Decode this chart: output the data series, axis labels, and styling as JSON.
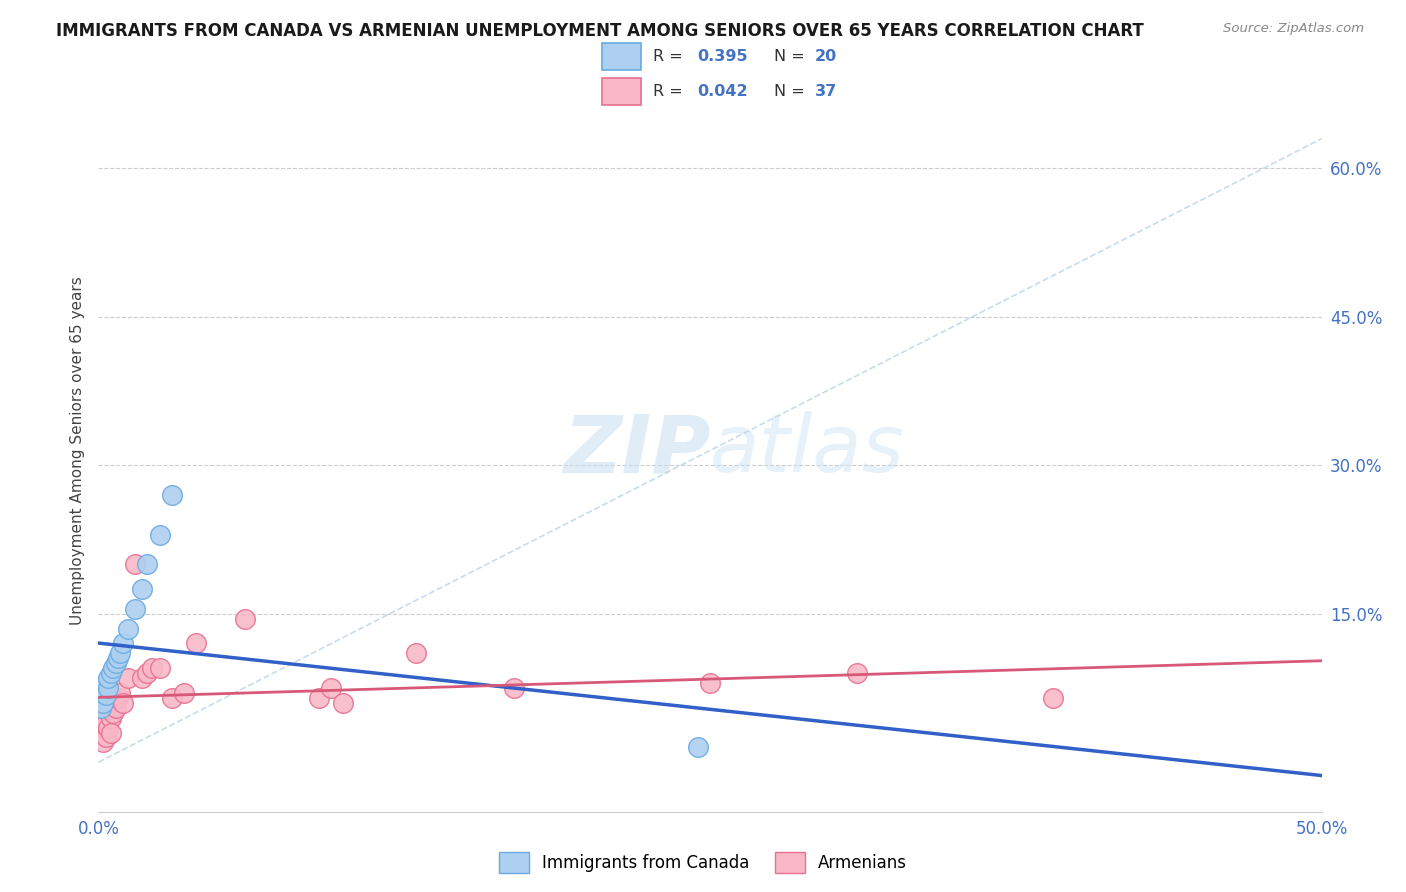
{
  "title": "IMMIGRANTS FROM CANADA VS ARMENIAN UNEMPLOYMENT AMONG SENIORS OVER 65 YEARS CORRELATION CHART",
  "source": "Source: ZipAtlas.com",
  "ylabel": "Unemployment Among Seniors over 65 years",
  "xlim": [
    0.0,
    0.5
  ],
  "ylim": [
    -0.05,
    0.68
  ],
  "canada_color": "#aed0f0",
  "canada_edge_color": "#6aaae0",
  "armenian_color": "#f8b8c8",
  "armenian_edge_color": "#e87090",
  "canada_line_color": "#3060c8",
  "armenian_line_color": "#d85878",
  "ref_line_color": "#b8d4e8",
  "R_canada": 0.395,
  "N_canada": 20,
  "R_armenian": 0.042,
  "N_armenian": 37,
  "canada_x": [
    0.001,
    0.002,
    0.002,
    0.003,
    0.003,
    0.004,
    0.004,
    0.005,
    0.006,
    0.007,
    0.008,
    0.009,
    0.01,
    0.012,
    0.015,
    0.018,
    0.02,
    0.025,
    0.03,
    0.245
  ],
  "canada_y": [
    0.055,
    0.06,
    0.07,
    0.068,
    0.08,
    0.075,
    0.085,
    0.09,
    0.095,
    0.1,
    0.105,
    0.11,
    0.12,
    0.135,
    0.155,
    0.175,
    0.2,
    0.23,
    0.27,
    0.015
  ],
  "armenian_x": [
    0.001,
    0.001,
    0.002,
    0.002,
    0.002,
    0.003,
    0.003,
    0.003,
    0.004,
    0.004,
    0.005,
    0.005,
    0.005,
    0.006,
    0.006,
    0.007,
    0.008,
    0.009,
    0.01,
    0.012,
    0.015,
    0.018,
    0.02,
    0.022,
    0.025,
    0.03,
    0.035,
    0.04,
    0.06,
    0.09,
    0.095,
    0.1,
    0.13,
    0.17,
    0.25,
    0.31,
    0.39
  ],
  "armenian_y": [
    0.03,
    0.045,
    0.035,
    0.055,
    0.02,
    0.04,
    0.055,
    0.025,
    0.035,
    0.06,
    0.045,
    0.055,
    0.03,
    0.05,
    0.065,
    0.055,
    0.065,
    0.07,
    0.06,
    0.085,
    0.2,
    0.085,
    0.09,
    0.095,
    0.095,
    0.065,
    0.07,
    0.12,
    0.145,
    0.065,
    0.075,
    0.06,
    0.11,
    0.075,
    0.08,
    0.09,
    0.065
  ],
  "watermark_text": "ZIPatlas",
  "legend_labels": [
    "Immigrants from Canada",
    "Armenians"
  ],
  "background_color": "#ffffff",
  "grid_color": "#cccccc",
  "right_yticks": [
    0.0,
    0.15,
    0.3,
    0.45,
    0.6
  ],
  "right_yticklabels": [
    "",
    "15.0%",
    "30.0%",
    "45.0%",
    "60.0%"
  ],
  "xticks": [
    0.0,
    0.1,
    0.2,
    0.3,
    0.4,
    0.5
  ],
  "xticklabels": [
    "0.0%",
    "",
    "",
    "",
    "",
    "50.0%"
  ]
}
